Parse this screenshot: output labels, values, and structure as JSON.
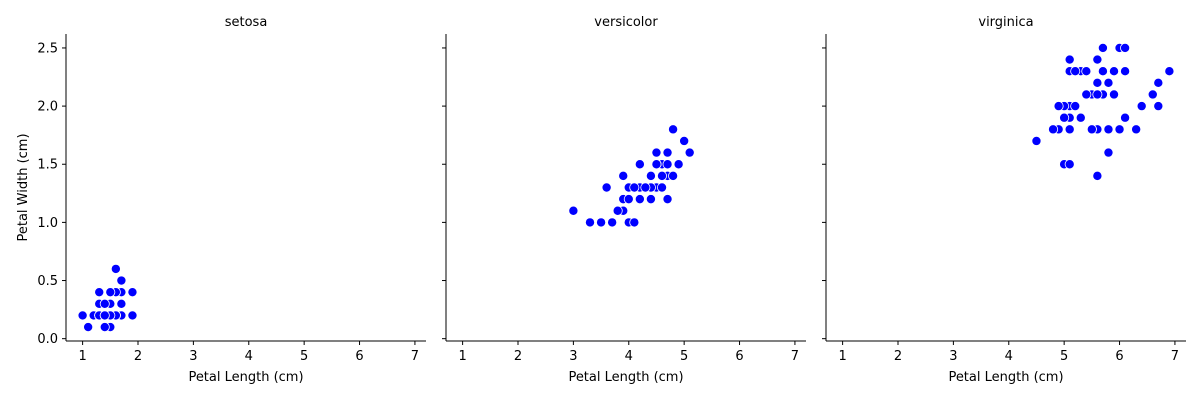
{
  "chart_data": {
    "type": "scatter",
    "marker_color": "#0000ff",
    "marker_edge_color": "#ffffff",
    "xlabel": "Petal Length (cm)",
    "ylabel": "Petal Width (cm)",
    "xlim": [
      0.7,
      7.2
    ],
    "ylim": [
      -0.02,
      2.62
    ],
    "xticks": [
      1,
      2,
      3,
      4,
      5,
      6,
      7
    ],
    "yticks": [
      0.0,
      0.5,
      1.0,
      1.5,
      2.0,
      2.5
    ],
    "xtick_labels": [
      "1",
      "2",
      "3",
      "4",
      "5",
      "6",
      "7"
    ],
    "ytick_labels": [
      "0.0",
      "0.5",
      "1.0",
      "1.5",
      "2.0",
      "2.5"
    ],
    "shared_y": true,
    "grid": false,
    "panels": [
      {
        "title": "setosa",
        "points": [
          [
            1.4,
            0.2
          ],
          [
            1.4,
            0.2
          ],
          [
            1.3,
            0.2
          ],
          [
            1.5,
            0.2
          ],
          [
            1.4,
            0.2
          ],
          [
            1.7,
            0.4
          ],
          [
            1.4,
            0.3
          ],
          [
            1.5,
            0.2
          ],
          [
            1.4,
            0.2
          ],
          [
            1.5,
            0.1
          ],
          [
            1.5,
            0.2
          ],
          [
            1.6,
            0.2
          ],
          [
            1.4,
            0.1
          ],
          [
            1.1,
            0.1
          ],
          [
            1.2,
            0.2
          ],
          [
            1.5,
            0.4
          ],
          [
            1.3,
            0.4
          ],
          [
            1.4,
            0.3
          ],
          [
            1.7,
            0.3
          ],
          [
            1.5,
            0.3
          ],
          [
            1.7,
            0.2
          ],
          [
            1.5,
            0.4
          ],
          [
            1.0,
            0.2
          ],
          [
            1.7,
            0.5
          ],
          [
            1.9,
            0.2
          ],
          [
            1.6,
            0.2
          ],
          [
            1.6,
            0.4
          ],
          [
            1.5,
            0.2
          ],
          [
            1.4,
            0.2
          ],
          [
            1.6,
            0.2
          ],
          [
            1.6,
            0.2
          ],
          [
            1.5,
            0.4
          ],
          [
            1.5,
            0.1
          ],
          [
            1.4,
            0.2
          ],
          [
            1.5,
            0.2
          ],
          [
            1.2,
            0.2
          ],
          [
            1.3,
            0.2
          ],
          [
            1.4,
            0.1
          ],
          [
            1.3,
            0.2
          ],
          [
            1.5,
            0.2
          ],
          [
            1.3,
            0.3
          ],
          [
            1.3,
            0.3
          ],
          [
            1.3,
            0.2
          ],
          [
            1.6,
            0.6
          ],
          [
            1.9,
            0.4
          ],
          [
            1.4,
            0.3
          ],
          [
            1.6,
            0.2
          ],
          [
            1.4,
            0.2
          ],
          [
            1.5,
            0.2
          ],
          [
            1.4,
            0.2
          ]
        ]
      },
      {
        "title": "versicolor",
        "points": [
          [
            4.7,
            1.4
          ],
          [
            4.5,
            1.5
          ],
          [
            4.9,
            1.5
          ],
          [
            4.0,
            1.3
          ],
          [
            4.6,
            1.5
          ],
          [
            4.5,
            1.3
          ],
          [
            4.7,
            1.6
          ],
          [
            3.3,
            1.0
          ],
          [
            4.6,
            1.3
          ],
          [
            3.9,
            1.4
          ],
          [
            3.5,
            1.0
          ],
          [
            4.2,
            1.5
          ],
          [
            4.0,
            1.0
          ],
          [
            4.7,
            1.4
          ],
          [
            3.6,
            1.3
          ],
          [
            4.4,
            1.4
          ],
          [
            4.5,
            1.5
          ],
          [
            4.1,
            1.0
          ],
          [
            4.5,
            1.5
          ],
          [
            3.9,
            1.1
          ],
          [
            4.8,
            1.8
          ],
          [
            4.0,
            1.3
          ],
          [
            4.9,
            1.5
          ],
          [
            4.7,
            1.2
          ],
          [
            4.3,
            1.3
          ],
          [
            4.4,
            1.4
          ],
          [
            4.8,
            1.4
          ],
          [
            5.0,
            1.7
          ],
          [
            4.5,
            1.5
          ],
          [
            3.5,
            1.0
          ],
          [
            3.8,
            1.1
          ],
          [
            3.7,
            1.0
          ],
          [
            3.9,
            1.2
          ],
          [
            5.1,
            1.6
          ],
          [
            4.5,
            1.5
          ],
          [
            4.5,
            1.6
          ],
          [
            4.7,
            1.5
          ],
          [
            4.4,
            1.3
          ],
          [
            4.1,
            1.3
          ],
          [
            4.0,
            1.3
          ],
          [
            4.4,
            1.2
          ],
          [
            4.6,
            1.4
          ],
          [
            4.0,
            1.2
          ],
          [
            3.3,
            1.0
          ],
          [
            4.2,
            1.3
          ],
          [
            4.2,
            1.2
          ],
          [
            4.2,
            1.3
          ],
          [
            4.3,
            1.3
          ],
          [
            3.0,
            1.1
          ],
          [
            4.1,
            1.3
          ]
        ]
      },
      {
        "title": "virginica",
        "points": [
          [
            6.0,
            2.5
          ],
          [
            5.1,
            1.9
          ],
          [
            5.9,
            2.1
          ],
          [
            5.6,
            1.8
          ],
          [
            5.8,
            2.2
          ],
          [
            6.6,
            2.1
          ],
          [
            4.5,
            1.7
          ],
          [
            6.3,
            1.8
          ],
          [
            5.8,
            1.8
          ],
          [
            6.1,
            2.5
          ],
          [
            5.1,
            2.0
          ],
          [
            5.3,
            1.9
          ],
          [
            5.5,
            2.1
          ],
          [
            5.0,
            2.0
          ],
          [
            5.1,
            2.4
          ],
          [
            5.3,
            2.3
          ],
          [
            5.5,
            1.8
          ],
          [
            6.7,
            2.2
          ],
          [
            6.9,
            2.3
          ],
          [
            5.0,
            1.5
          ],
          [
            5.7,
            2.3
          ],
          [
            4.9,
            2.0
          ],
          [
            6.7,
            2.0
          ],
          [
            4.9,
            1.8
          ],
          [
            5.7,
            2.1
          ],
          [
            6.0,
            1.8
          ],
          [
            4.8,
            1.8
          ],
          [
            4.9,
            1.8
          ],
          [
            5.6,
            2.1
          ],
          [
            5.8,
            1.6
          ],
          [
            6.1,
            1.9
          ],
          [
            6.4,
            2.0
          ],
          [
            5.6,
            2.2
          ],
          [
            5.1,
            1.5
          ],
          [
            5.6,
            1.4
          ],
          [
            6.1,
            2.3
          ],
          [
            5.6,
            2.4
          ],
          [
            5.5,
            1.8
          ],
          [
            4.8,
            1.8
          ],
          [
            5.4,
            2.1
          ],
          [
            5.6,
            2.4
          ],
          [
            5.1,
            2.3
          ],
          [
            5.1,
            1.9
          ],
          [
            5.9,
            2.3
          ],
          [
            5.7,
            2.5
          ],
          [
            5.2,
            2.3
          ],
          [
            5.0,
            1.9
          ],
          [
            5.2,
            2.0
          ],
          [
            5.4,
            2.3
          ],
          [
            5.1,
            1.8
          ]
        ]
      }
    ]
  }
}
